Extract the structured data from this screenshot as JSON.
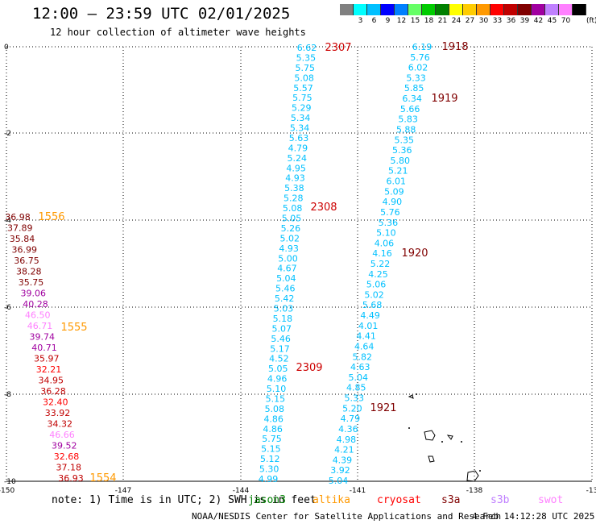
{
  "header": {
    "title": "12:00 – 23:59 UTC 02/01/2025",
    "subtitle": "12 hour collection of altimeter wave heights"
  },
  "legend": {
    "unit": "(ft)",
    "items": [
      {
        "label": "",
        "color": "#808080"
      },
      {
        "label": "3",
        "color": "#00ffff"
      },
      {
        "label": "6",
        "color": "#00c0ff"
      },
      {
        "label": "9",
        "color": "#0000ff"
      },
      {
        "label": "12",
        "color": "#0080ff"
      },
      {
        "label": "15",
        "color": "#66ff66"
      },
      {
        "label": "18",
        "color": "#00cc00"
      },
      {
        "label": "21",
        "color": "#008000"
      },
      {
        "label": "24",
        "color": "#ffff00"
      },
      {
        "label": "27",
        "color": "#ffcc00"
      },
      {
        "label": "30",
        "color": "#ff9900"
      },
      {
        "label": "33",
        "color": "#ff0000"
      },
      {
        "label": "36",
        "color": "#c00000"
      },
      {
        "label": "39",
        "color": "#800000"
      },
      {
        "label": "42",
        "color": "#a000a0"
      },
      {
        "label": "45",
        "color": "#c080ff"
      },
      {
        "label": "70",
        "color": "#ff80ff"
      },
      {
        "label": "",
        "color": "#000000"
      }
    ]
  },
  "axes": {
    "lon_labels": [
      "-150",
      "-147",
      "-144",
      "-141",
      "-138",
      "-13"
    ],
    "lat_labels": [
      "0",
      "-2",
      "-4",
      "-6",
      "-8",
      "-10"
    ]
  },
  "tracks": [
    {
      "id": "track-2307",
      "time_label": "2307",
      "time_label_color": "#cc0000",
      "values": [
        "6.62",
        "5.35",
        "5.75",
        "5.08",
        "5.57",
        "5.75",
        "5.29",
        "5.34",
        "5.34",
        "5.63",
        "4.79",
        "5.24",
        "4.95",
        "4.93",
        "5.38",
        "5.28",
        "5.08",
        "5.05",
        "5.26",
        "5.02",
        "4.93",
        "5.00",
        "4.67",
        "5.04",
        "5.46",
        "5.42",
        "5.03",
        "5.18",
        "5.07",
        "5.46",
        "5.17",
        "4.52",
        "5.05",
        "4.96",
        "5.10",
        "5.15",
        "5.08",
        "4.86",
        "4.86",
        "5.75",
        "5.15",
        "5.12",
        "5.30",
        "4.99"
      ],
      "colors": [
        "#00c0ff"
      ]
    },
    {
      "id": "track-1918",
      "time_label": "1918",
      "time_label_color": "#800000",
      "values": [
        "6.19",
        "5.76",
        "6.02",
        "5.33",
        "5.85",
        "6.34",
        "5.66",
        "5.83",
        "5.88",
        "5.35",
        "5.36",
        "5.80",
        "5.21",
        "6.01",
        "5.09",
        "4.90",
        "5.76",
        "5.36",
        "5.10",
        "4.06",
        "4.16",
        "5.22",
        "4.25",
        "5.06",
        "5.02",
        "5.68",
        "4.49",
        "4.01",
        "4.41",
        "4.64",
        "5.82",
        "4.63",
        "5.04",
        "4.85",
        "5.33",
        "5.20",
        "4.79",
        "4.36",
        "4.98",
        "4.21",
        "4.39",
        "3.92",
        "5.04"
      ],
      "colors": [
        "#00c0ff"
      ]
    },
    {
      "id": "track-1556",
      "time_label": "1556",
      "time_label_color": "#ff9900",
      "values": [
        "36.98",
        "37.89",
        "35.84",
        "36.99",
        "36.75",
        "38.28",
        "35.75",
        "39.06",
        "40.28",
        "46.50",
        "46.71",
        "39.74",
        "40.71",
        "35.97",
        "32.21",
        "34.95",
        "36.28",
        "32.40",
        "33.92",
        "34.32",
        "46.66",
        "39.52",
        "32.68",
        "37.18",
        "36.93"
      ],
      "colors": [
        "#800000",
        "#800000",
        "#800000",
        "#800000",
        "#800000",
        "#800000",
        "#800000",
        "#a000a0",
        "#a000a0",
        "#ff80ff",
        "#ff80ff",
        "#a000a0",
        "#a000a0",
        "#c00000",
        "#ff0000",
        "#c00000",
        "#c00000",
        "#ff0000",
        "#c00000",
        "#c00000",
        "#ff80ff",
        "#a000a0",
        "#ff0000",
        "#c00000",
        "#c00000"
      ]
    }
  ],
  "time_labels": [
    {
      "text": "2307",
      "color": "#cc0000"
    },
    {
      "text": "1918",
      "color": "#800000"
    },
    {
      "text": "1919",
      "color": "#800000"
    },
    {
      "text": "2308",
      "color": "#cc0000"
    },
    {
      "text": "1556",
      "color": "#ff9900"
    },
    {
      "text": "1920",
      "color": "#800000"
    },
    {
      "text": "1555",
      "color": "#ff9900"
    },
    {
      "text": "2309",
      "color": "#cc0000"
    },
    {
      "text": "1921",
      "color": "#800000"
    },
    {
      "text": "1554",
      "color": "#ff9900"
    }
  ],
  "footer": {
    "note": "note: 1) Time is in UTC; 2) SWH is in feet",
    "satellites": [
      {
        "name": "jason3",
        "color": "#008000"
      },
      {
        "name": "altika",
        "color": "#ff9900"
      },
      {
        "name": "cryosat",
        "color": "#ff0000"
      },
      {
        "name": "s3a",
        "color": "#800000"
      },
      {
        "name": "s3b",
        "color": "#c080ff"
      },
      {
        "name": "swot",
        "color": "#ff80ff"
      }
    ],
    "credit": "NOAA/NESDIS Center for Satellite Applications and Research",
    "timestamp": "4 Feb 14:12:28 UTC 2025"
  }
}
